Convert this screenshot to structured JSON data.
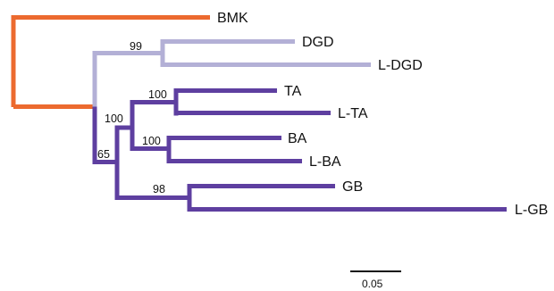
{
  "colors": {
    "outgroup": "#ec6a2f",
    "dgd_clade": "#b3b0d6",
    "main_clade": "#5e3fa0"
  },
  "taxa": {
    "bmk": "BMK",
    "dgd": "DGD",
    "l_dgd": "L-DGD",
    "ta": "TA",
    "l_ta": "L-TA",
    "ba": "BA",
    "l_ba": "L-BA",
    "gb": "GB",
    "l_gb": "L-GB"
  },
  "bootstrap": {
    "dgd_node": "99",
    "ta_node": "100",
    "ta_ba_node": "100",
    "ba_node": "100",
    "main_node": "65",
    "gb_node": "98"
  },
  "scale_bar": {
    "label": "0.05"
  }
}
